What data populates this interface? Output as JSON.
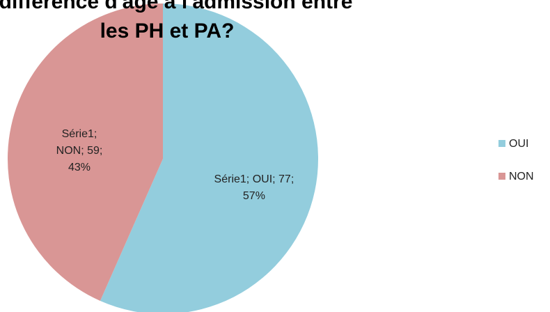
{
  "chart_data": {
    "type": "pie",
    "title": [
      "e différence d'âge à l'admission entre",
      "les PH et PA?"
    ],
    "series_name": "Série1",
    "categories": [
      "OUI",
      "NON"
    ],
    "values": [
      77,
      59
    ],
    "value_labels": [
      [
        "Série1; OUI; 77;",
        "57%"
      ],
      [
        "Série1;",
        "NON; 59;",
        "43%"
      ]
    ],
    "colors": [
      "#93cddd",
      "#d99695"
    ],
    "legend": "right"
  }
}
